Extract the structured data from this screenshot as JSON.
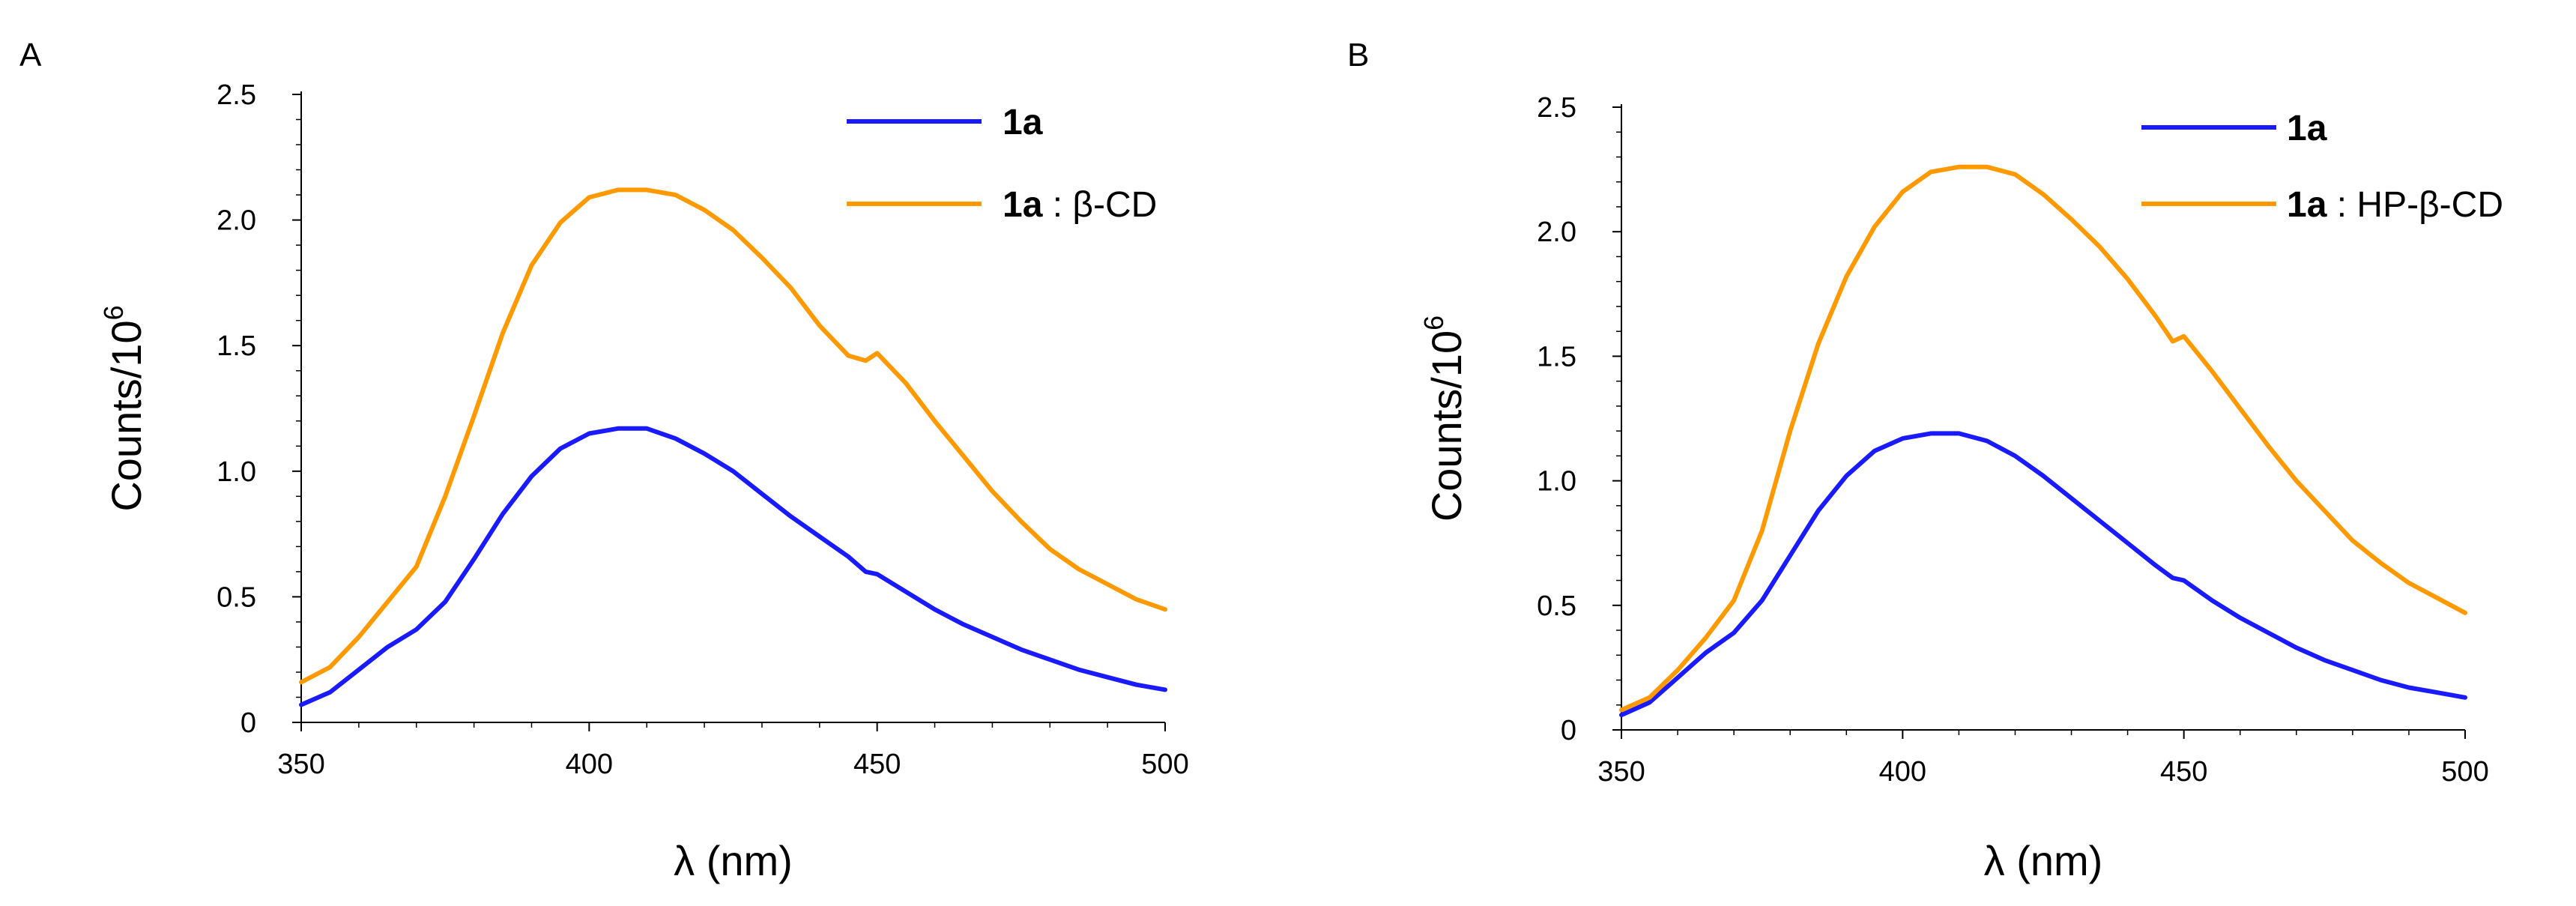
{
  "chart_data": [
    {
      "type": "line",
      "panel_label": "A",
      "xlabel": "λ (nm)",
      "ylabel_base": "Counts/10",
      "ylabel_exp": "6",
      "xlim": [
        350,
        500
      ],
      "ylim": [
        0,
        2.5
      ],
      "xticks": [
        "350",
        "400",
        "450",
        "500"
      ],
      "yticks": [
        "0",
        "0.5",
        "1.0",
        "1.5",
        "2.0",
        "2.5"
      ],
      "grid": false,
      "legend_position": "top-right",
      "series": [
        {
          "name": "1a",
          "label_bold": "1a",
          "label_rest": "",
          "color": "#1a1aff",
          "x": [
            350,
            355,
            360,
            365,
            370,
            375,
            380,
            385,
            390,
            395,
            400,
            405,
            410,
            415,
            420,
            425,
            430,
            435,
            440,
            445,
            448,
            450,
            455,
            460,
            465,
            470,
            475,
            480,
            485,
            490,
            495,
            500
          ],
          "y": [
            0.07,
            0.12,
            0.21,
            0.3,
            0.37,
            0.48,
            0.65,
            0.83,
            0.98,
            1.09,
            1.15,
            1.17,
            1.17,
            1.13,
            1.07,
            1.0,
            0.91,
            0.82,
            0.74,
            0.66,
            0.6,
            0.59,
            0.52,
            0.45,
            0.39,
            0.34,
            0.29,
            0.25,
            0.21,
            0.18,
            0.15,
            0.13
          ]
        },
        {
          "name": "1a : β-CD",
          "label_bold": "1a",
          "label_rest": " : β-CD",
          "color": "#ff9900",
          "x": [
            350,
            355,
            360,
            365,
            370,
            375,
            380,
            385,
            390,
            395,
            400,
            405,
            410,
            415,
            420,
            425,
            430,
            435,
            440,
            445,
            448,
            450,
            455,
            460,
            465,
            470,
            475,
            480,
            485,
            490,
            495,
            500
          ],
          "y": [
            0.16,
            0.22,
            0.34,
            0.48,
            0.62,
            0.9,
            1.22,
            1.55,
            1.82,
            1.99,
            2.09,
            2.12,
            2.12,
            2.1,
            2.04,
            1.96,
            1.85,
            1.73,
            1.58,
            1.46,
            1.44,
            1.47,
            1.35,
            1.2,
            1.06,
            0.92,
            0.8,
            0.69,
            0.61,
            0.55,
            0.49,
            0.45
          ]
        }
      ]
    },
    {
      "type": "line",
      "panel_label": "B",
      "xlabel": "λ (nm)",
      "ylabel_base": "Counts/10",
      "ylabel_exp": "6",
      "xlim": [
        350,
        500
      ],
      "ylim": [
        0,
        2.5
      ],
      "xticks": [
        "350",
        "400",
        "450",
        "500"
      ],
      "yticks": [
        "0",
        "0.5",
        "1.0",
        "1.5",
        "2.0",
        "2.5"
      ],
      "grid": false,
      "legend_position": "top-right",
      "series": [
        {
          "name": "1a",
          "label_bold": "1a",
          "label_rest": "",
          "color": "#1a1aff",
          "x": [
            350,
            355,
            360,
            365,
            370,
            375,
            380,
            385,
            390,
            395,
            400,
            405,
            410,
            415,
            420,
            425,
            430,
            435,
            440,
            445,
            448,
            450,
            455,
            460,
            465,
            470,
            475,
            480,
            485,
            490,
            495,
            500
          ],
          "y": [
            0.06,
            0.11,
            0.21,
            0.31,
            0.39,
            0.52,
            0.7,
            0.88,
            1.02,
            1.12,
            1.17,
            1.19,
            1.19,
            1.16,
            1.1,
            1.02,
            0.93,
            0.84,
            0.75,
            0.66,
            0.61,
            0.6,
            0.52,
            0.45,
            0.39,
            0.33,
            0.28,
            0.24,
            0.2,
            0.17,
            0.15,
            0.13
          ]
        },
        {
          "name": "1a : HP-β-CD",
          "label_bold": "1a",
          "label_rest": " : HP-β-CD",
          "color": "#ff9900",
          "x": [
            350,
            355,
            360,
            365,
            370,
            375,
            380,
            385,
            390,
            395,
            400,
            405,
            410,
            415,
            420,
            425,
            430,
            435,
            440,
            445,
            448,
            450,
            455,
            460,
            465,
            470,
            475,
            480,
            485,
            490,
            495,
            500
          ],
          "y": [
            0.08,
            0.13,
            0.24,
            0.37,
            0.52,
            0.8,
            1.2,
            1.55,
            1.82,
            2.02,
            2.16,
            2.24,
            2.26,
            2.26,
            2.23,
            2.15,
            2.05,
            1.94,
            1.81,
            1.66,
            1.56,
            1.58,
            1.44,
            1.29,
            1.14,
            1.0,
            0.88,
            0.76,
            0.67,
            0.59,
            0.53,
            0.47
          ]
        }
      ]
    }
  ]
}
